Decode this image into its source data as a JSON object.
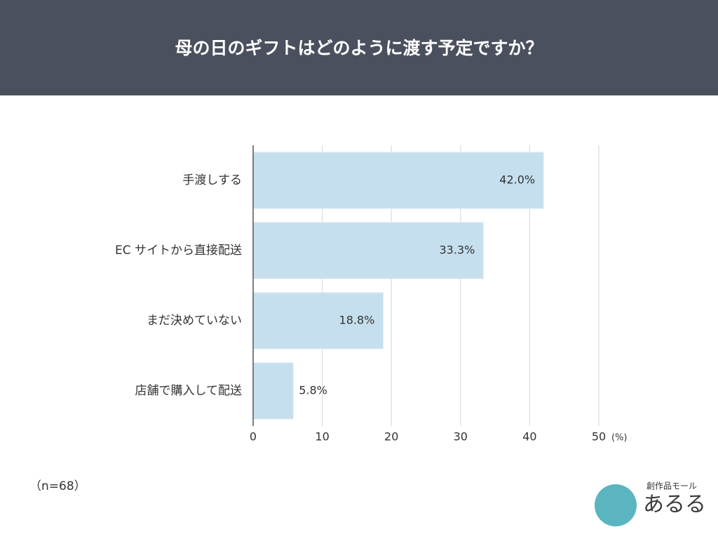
{
  "chart_data": {
    "type": "barh",
    "title": "母の日のギフトはどのように渡す予定ですか？",
    "categories": [
      "手渡しする",
      "EC サイトから直接配送",
      "まだ決めていない",
      "店舗で購入して配送"
    ],
    "values": [
      42.0,
      33.3,
      18.8,
      5.8
    ],
    "value_labels": [
      "42.0%",
      "33.3%",
      "18.8%",
      "5.8%"
    ],
    "color": "#c6dfee",
    "xlim": [
      0,
      50
    ],
    "xticks": [
      0,
      10,
      20,
      30,
      40,
      50
    ],
    "x_unit": "(%)",
    "grid": true,
    "note": "（n=68）"
  },
  "logo": {
    "sub": "創作品モール",
    "main": "あるる"
  }
}
